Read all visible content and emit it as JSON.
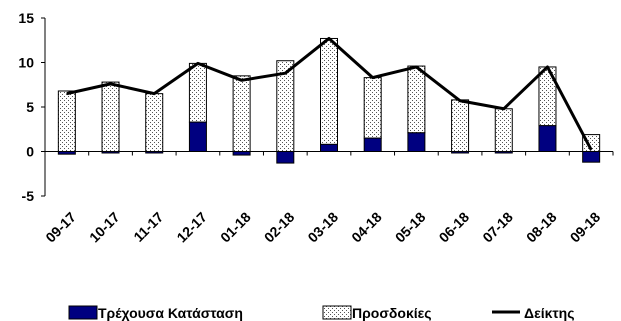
{
  "chart_data": {
    "type": "bar",
    "stacked": true,
    "categories": [
      "09-17",
      "10-17",
      "11-17",
      "12-17",
      "01-18",
      "02-18",
      "03-18",
      "04-18",
      "05-18",
      "06-18",
      "07-18",
      "08-18",
      "09-18"
    ],
    "series": [
      {
        "name": "Τρέχουσα Κατάσταση",
        "type": "bar",
        "color": "#000080",
        "values": [
          -0.3,
          -0.1,
          0.0,
          3.3,
          -0.4,
          -1.3,
          0.8,
          1.5,
          2.1,
          0.0,
          -0.1,
          2.9,
          -1.2
        ]
      },
      {
        "name": "Προσδοκίες",
        "type": "bar",
        "pattern": "dotted",
        "color": "#ffffff",
        "values": [
          6.8,
          7.8,
          6.5,
          6.6,
          8.5,
          10.2,
          11.9,
          6.8,
          7.5,
          5.8,
          4.8,
          6.6,
          1.9
        ]
      },
      {
        "name": "Δείκτης",
        "type": "line",
        "color": "#000000",
        "values": [
          6.5,
          7.6,
          6.5,
          9.9,
          8.0,
          8.8,
          12.7,
          8.3,
          9.5,
          5.7,
          4.8,
          9.5,
          0.2
        ]
      }
    ],
    "ylim": [
      -5,
      15
    ],
    "yticks": [
      "-5",
      "0",
      "5",
      "10",
      "15"
    ],
    "grid": false,
    "legend_position": "bottom",
    "title": "",
    "xlabel": "",
    "ylabel": ""
  }
}
